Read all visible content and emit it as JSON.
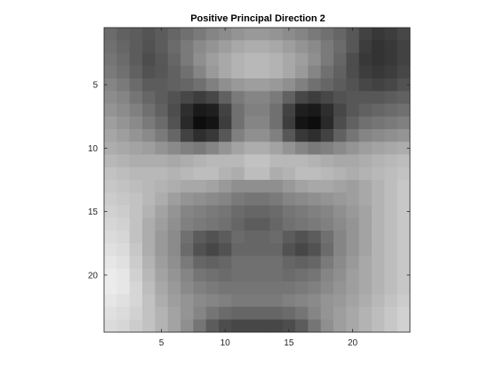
{
  "chart_data": {
    "type": "heatmap",
    "title": "Positive Principal Direction 2",
    "xlabel": "",
    "ylabel": "",
    "colormap": "gray",
    "rows": 24,
    "cols": 24,
    "xlim": [
      0.5,
      24.5
    ],
    "ylim": [
      0.5,
      24.5
    ],
    "y_direction": "reverse",
    "xticks": [
      5,
      10,
      15,
      20
    ],
    "yticks": [
      5,
      10,
      15,
      20
    ],
    "grid": false,
    "values": [
      [
        0.42,
        0.38,
        0.36,
        0.33,
        0.36,
        0.4,
        0.44,
        0.48,
        0.52,
        0.55,
        0.58,
        0.6,
        0.6,
        0.58,
        0.55,
        0.52,
        0.48,
        0.44,
        0.4,
        0.34,
        0.26,
        0.22,
        0.24,
        0.28
      ],
      [
        0.44,
        0.4,
        0.36,
        0.32,
        0.36,
        0.42,
        0.48,
        0.54,
        0.58,
        0.62,
        0.66,
        0.68,
        0.68,
        0.66,
        0.62,
        0.58,
        0.54,
        0.48,
        0.42,
        0.34,
        0.24,
        0.2,
        0.22,
        0.26
      ],
      [
        0.46,
        0.42,
        0.36,
        0.3,
        0.34,
        0.4,
        0.48,
        0.56,
        0.62,
        0.66,
        0.7,
        0.72,
        0.72,
        0.7,
        0.66,
        0.62,
        0.56,
        0.48,
        0.4,
        0.3,
        0.22,
        0.2,
        0.22,
        0.26
      ],
      [
        0.48,
        0.44,
        0.38,
        0.32,
        0.34,
        0.38,
        0.44,
        0.52,
        0.6,
        0.66,
        0.7,
        0.72,
        0.72,
        0.7,
        0.66,
        0.6,
        0.52,
        0.44,
        0.38,
        0.3,
        0.24,
        0.22,
        0.24,
        0.28
      ],
      [
        0.52,
        0.48,
        0.42,
        0.36,
        0.36,
        0.38,
        0.4,
        0.44,
        0.5,
        0.56,
        0.6,
        0.62,
        0.62,
        0.6,
        0.56,
        0.5,
        0.44,
        0.4,
        0.36,
        0.32,
        0.28,
        0.26,
        0.28,
        0.32
      ],
      [
        0.55,
        0.52,
        0.46,
        0.4,
        0.36,
        0.32,
        0.28,
        0.24,
        0.28,
        0.38,
        0.48,
        0.52,
        0.52,
        0.48,
        0.38,
        0.28,
        0.24,
        0.28,
        0.32,
        0.34,
        0.34,
        0.34,
        0.36,
        0.38
      ],
      [
        0.58,
        0.55,
        0.5,
        0.44,
        0.38,
        0.3,
        0.18,
        0.1,
        0.12,
        0.26,
        0.44,
        0.5,
        0.5,
        0.44,
        0.26,
        0.12,
        0.1,
        0.18,
        0.28,
        0.34,
        0.38,
        0.4,
        0.42,
        0.44
      ],
      [
        0.62,
        0.58,
        0.54,
        0.48,
        0.42,
        0.32,
        0.16,
        0.05,
        0.08,
        0.24,
        0.44,
        0.52,
        0.52,
        0.44,
        0.24,
        0.08,
        0.05,
        0.16,
        0.3,
        0.38,
        0.44,
        0.46,
        0.48,
        0.5
      ],
      [
        0.65,
        0.62,
        0.58,
        0.54,
        0.48,
        0.4,
        0.26,
        0.18,
        0.22,
        0.34,
        0.5,
        0.56,
        0.56,
        0.5,
        0.34,
        0.22,
        0.18,
        0.26,
        0.38,
        0.46,
        0.52,
        0.54,
        0.56,
        0.58
      ],
      [
        0.68,
        0.66,
        0.64,
        0.62,
        0.58,
        0.54,
        0.5,
        0.48,
        0.52,
        0.58,
        0.64,
        0.68,
        0.68,
        0.64,
        0.58,
        0.52,
        0.48,
        0.5,
        0.54,
        0.58,
        0.62,
        0.64,
        0.66,
        0.68
      ],
      [
        0.72,
        0.7,
        0.68,
        0.68,
        0.68,
        0.66,
        0.68,
        0.7,
        0.72,
        0.72,
        0.72,
        0.76,
        0.76,
        0.72,
        0.72,
        0.72,
        0.7,
        0.68,
        0.66,
        0.66,
        0.68,
        0.7,
        0.72,
        0.74
      ],
      [
        0.76,
        0.74,
        0.72,
        0.72,
        0.72,
        0.7,
        0.72,
        0.74,
        0.74,
        0.7,
        0.68,
        0.74,
        0.74,
        0.68,
        0.7,
        0.74,
        0.74,
        0.72,
        0.7,
        0.68,
        0.7,
        0.72,
        0.74,
        0.76
      ],
      [
        0.78,
        0.76,
        0.74,
        0.72,
        0.7,
        0.68,
        0.66,
        0.66,
        0.64,
        0.6,
        0.56,
        0.56,
        0.56,
        0.56,
        0.6,
        0.64,
        0.66,
        0.66,
        0.64,
        0.62,
        0.66,
        0.7,
        0.74,
        0.78
      ],
      [
        0.8,
        0.78,
        0.76,
        0.72,
        0.68,
        0.62,
        0.58,
        0.56,
        0.54,
        0.52,
        0.48,
        0.46,
        0.46,
        0.48,
        0.52,
        0.54,
        0.56,
        0.58,
        0.6,
        0.62,
        0.66,
        0.7,
        0.74,
        0.78
      ],
      [
        0.82,
        0.8,
        0.76,
        0.7,
        0.64,
        0.58,
        0.52,
        0.5,
        0.48,
        0.46,
        0.42,
        0.4,
        0.4,
        0.42,
        0.46,
        0.48,
        0.5,
        0.52,
        0.56,
        0.6,
        0.64,
        0.7,
        0.74,
        0.78
      ],
      [
        0.84,
        0.82,
        0.76,
        0.68,
        0.62,
        0.56,
        0.5,
        0.48,
        0.46,
        0.44,
        0.4,
        0.36,
        0.36,
        0.4,
        0.44,
        0.46,
        0.48,
        0.5,
        0.54,
        0.58,
        0.64,
        0.7,
        0.74,
        0.78
      ],
      [
        0.86,
        0.84,
        0.76,
        0.68,
        0.6,
        0.54,
        0.44,
        0.36,
        0.32,
        0.36,
        0.42,
        0.4,
        0.4,
        0.42,
        0.36,
        0.32,
        0.36,
        0.44,
        0.52,
        0.58,
        0.64,
        0.7,
        0.74,
        0.78
      ],
      [
        0.88,
        0.86,
        0.78,
        0.68,
        0.6,
        0.54,
        0.42,
        0.32,
        0.28,
        0.32,
        0.4,
        0.4,
        0.4,
        0.4,
        0.32,
        0.28,
        0.32,
        0.42,
        0.52,
        0.58,
        0.64,
        0.7,
        0.74,
        0.78
      ],
      [
        0.9,
        0.88,
        0.8,
        0.7,
        0.62,
        0.56,
        0.48,
        0.4,
        0.38,
        0.4,
        0.44,
        0.44,
        0.44,
        0.44,
        0.4,
        0.38,
        0.4,
        0.48,
        0.54,
        0.6,
        0.66,
        0.7,
        0.74,
        0.78
      ],
      [
        0.92,
        0.9,
        0.82,
        0.72,
        0.64,
        0.58,
        0.52,
        0.46,
        0.44,
        0.42,
        0.44,
        0.44,
        0.44,
        0.44,
        0.42,
        0.44,
        0.46,
        0.52,
        0.56,
        0.62,
        0.66,
        0.7,
        0.74,
        0.78
      ],
      [
        0.92,
        0.9,
        0.84,
        0.74,
        0.66,
        0.6,
        0.54,
        0.5,
        0.48,
        0.46,
        0.46,
        0.46,
        0.46,
        0.46,
        0.46,
        0.48,
        0.5,
        0.54,
        0.58,
        0.62,
        0.66,
        0.7,
        0.74,
        0.78
      ],
      [
        0.9,
        0.88,
        0.84,
        0.76,
        0.68,
        0.62,
        0.58,
        0.54,
        0.52,
        0.5,
        0.48,
        0.48,
        0.48,
        0.48,
        0.5,
        0.52,
        0.54,
        0.58,
        0.6,
        0.64,
        0.68,
        0.72,
        0.76,
        0.8
      ],
      [
        0.88,
        0.86,
        0.82,
        0.76,
        0.7,
        0.64,
        0.58,
        0.52,
        0.46,
        0.42,
        0.4,
        0.4,
        0.4,
        0.4,
        0.42,
        0.46,
        0.52,
        0.58,
        0.62,
        0.66,
        0.7,
        0.74,
        0.78,
        0.82
      ],
      [
        0.86,
        0.84,
        0.8,
        0.76,
        0.7,
        0.64,
        0.56,
        0.46,
        0.36,
        0.3,
        0.28,
        0.28,
        0.28,
        0.28,
        0.3,
        0.36,
        0.46,
        0.56,
        0.62,
        0.66,
        0.7,
        0.74,
        0.78,
        0.82
      ]
    ]
  }
}
